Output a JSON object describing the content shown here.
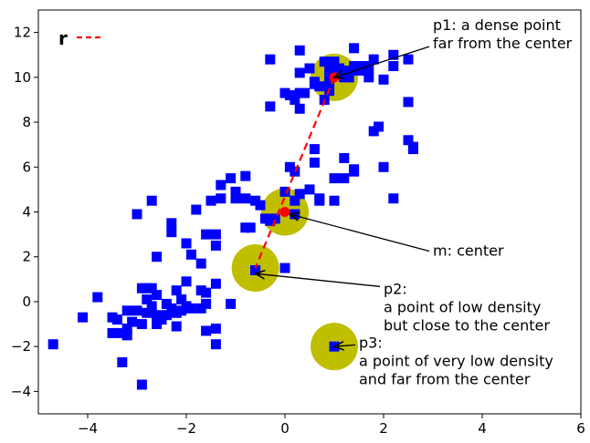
{
  "chart_data": {
    "type": "scatter",
    "xlim": [
      -5,
      6
    ],
    "ylim": [
      -5,
      13
    ],
    "xticks": [
      -4,
      -2,
      0,
      2,
      4,
      6
    ],
    "yticks": [
      -4,
      -2,
      0,
      2,
      4,
      6,
      8,
      10,
      12
    ],
    "xtick_labels": [
      "−4",
      "−2",
      "0",
      "2",
      "4",
      "6"
    ],
    "ytick_labels": [
      "−4",
      "−2",
      "0",
      "2",
      "4",
      "6",
      "8",
      "10",
      "12"
    ],
    "grid": false,
    "legend": {
      "position": "top-left",
      "entries": [
        {
          "label": "r",
          "style": "dashed-line",
          "color": "#ff0000"
        }
      ]
    },
    "points_color": "#0000ff",
    "points": [
      [
        -4.7,
        -1.9
      ],
      [
        -3.3,
        -2.7
      ],
      [
        -2.9,
        -3.7
      ],
      [
        -4.1,
        -0.7
      ],
      [
        -3.8,
        0.2
      ],
      [
        -3.5,
        -0.7
      ],
      [
        -3.4,
        -0.8
      ],
      [
        -3.5,
        -1.4
      ],
      [
        -3.3,
        -1.4
      ],
      [
        -3.2,
        -1.5
      ],
      [
        -3.2,
        -1.2
      ],
      [
        -3.1,
        -0.9
      ],
      [
        -3.2,
        -0.4
      ],
      [
        -3.0,
        -0.4
      ],
      [
        -2.9,
        0.6
      ],
      [
        -2.8,
        0.6
      ],
      [
        -2.7,
        0.6
      ],
      [
        -2.8,
        0.1
      ],
      [
        -2.7,
        -0.2
      ],
      [
        -2.8,
        -0.5
      ],
      [
        -2.9,
        -1.0
      ],
      [
        -2.6,
        -1.0
      ],
      [
        -2.6,
        -0.6
      ],
      [
        -2.5,
        -0.8
      ],
      [
        -2.6,
        0.3
      ],
      [
        -2.4,
        -0.1
      ],
      [
        -2.3,
        -0.3
      ],
      [
        -2.4,
        -0.6
      ],
      [
        -2.2,
        -0.5
      ],
      [
        -2.2,
        -1.1
      ],
      [
        -2.1,
        -0.4
      ],
      [
        -2.0,
        -0.2
      ],
      [
        -2.1,
        0.1
      ],
      [
        -2.2,
        0.5
      ],
      [
        -2.0,
        0.9
      ],
      [
        -1.9,
        -0.3
      ],
      [
        -1.7,
        -0.3
      ],
      [
        -1.6,
        -0.1
      ],
      [
        -1.6,
        -1.3
      ],
      [
        -1.4,
        -1.2
      ],
      [
        -1.4,
        -1.9
      ],
      [
        -1.7,
        0.5
      ],
      [
        -1.6,
        0.4
      ],
      [
        -1.4,
        0.8
      ],
      [
        -1.1,
        -0.1
      ],
      [
        -2.6,
        2.0
      ],
      [
        -2.0,
        2.6
      ],
      [
        -1.9,
        2.1
      ],
      [
        -1.7,
        1.7
      ],
      [
        -1.6,
        3.0
      ],
      [
        -1.4,
        3.0
      ],
      [
        -1.4,
        2.5
      ],
      [
        -2.3,
        3.5
      ],
      [
        -2.3,
        3.1
      ],
      [
        -3.0,
        3.9
      ],
      [
        -2.7,
        4.5
      ],
      [
        -1.8,
        4.1
      ],
      [
        -1.5,
        4.5
      ],
      [
        -1.3,
        4.6
      ],
      [
        -1.3,
        5.2
      ],
      [
        -1.1,
        5.5
      ],
      [
        -0.8,
        5.6
      ],
      [
        -1.0,
        4.9
      ],
      [
        -1.0,
        4.6
      ],
      [
        -0.8,
        4.6
      ],
      [
        -0.8,
        3.3
      ],
      [
        -0.7,
        3.3
      ],
      [
        -0.6,
        4.5
      ],
      [
        -0.5,
        4.3
      ],
      [
        -0.4,
        3.7
      ],
      [
        -0.3,
        3.6
      ],
      [
        -0.2,
        3.7
      ],
      [
        0.0,
        4.9
      ],
      [
        0.2,
        3.9
      ],
      [
        0.2,
        4.5
      ],
      [
        0.3,
        4.8
      ],
      [
        0.5,
        5.0
      ],
      [
        0.7,
        4.6
      ],
      [
        0.7,
        4.5
      ],
      [
        1.0,
        4.5
      ],
      [
        0.2,
        5.8
      ],
      [
        0.1,
        6.0
      ],
      [
        0.6,
        6.2
      ],
      [
        0.6,
        6.8
      ],
      [
        1.2,
        6.4
      ],
      [
        1.4,
        5.8
      ],
      [
        1.4,
        5.9
      ],
      [
        1.2,
        5.5
      ],
      [
        1.0,
        5.5
      ],
      [
        2.0,
        6.0
      ],
      [
        2.2,
        4.6
      ],
      [
        0.0,
        1.5
      ],
      [
        -0.6,
        1.4
      ],
      [
        -0.3,
        10.8
      ],
      [
        -0.3,
        8.7
      ],
      [
        0.3,
        8.6
      ],
      [
        0.0,
        9.3
      ],
      [
        0.1,
        9.2
      ],
      [
        0.2,
        9.0
      ],
      [
        0.3,
        9.3
      ],
      [
        0.4,
        9.3
      ],
      [
        0.6,
        9.7
      ],
      [
        0.6,
        9.8
      ],
      [
        0.7,
        9.6
      ],
      [
        0.8,
        9.0
      ],
      [
        0.9,
        9.4
      ],
      [
        0.9,
        9.8
      ],
      [
        0.9,
        10.2
      ],
      [
        0.8,
        10.7
      ],
      [
        0.9,
        10.6
      ],
      [
        1.0,
        10.7
      ],
      [
        1.1,
        10.4
      ],
      [
        1.2,
        10.0
      ],
      [
        1.3,
        10.0
      ],
      [
        1.3,
        10.3
      ],
      [
        1.4,
        10.5
      ],
      [
        1.5,
        10.3
      ],
      [
        1.6,
        10.5
      ],
      [
        1.7,
        10.4
      ],
      [
        1.7,
        10.0
      ],
      [
        1.8,
        10.8
      ],
      [
        2.0,
        9.9
      ],
      [
        2.2,
        10.5
      ],
      [
        2.2,
        11.0
      ],
      [
        2.5,
        10.8
      ],
      [
        1.4,
        11.3
      ],
      [
        0.3,
        11.2
      ],
      [
        0.3,
        10.2
      ],
      [
        0.5,
        10.4
      ],
      [
        2.5,
        8.9
      ],
      [
        1.8,
        7.6
      ],
      [
        1.9,
        7.8
      ],
      [
        2.5,
        7.2
      ],
      [
        2.6,
        6.9
      ],
      [
        2.6,
        6.8
      ]
    ],
    "red_line": {
      "from": [
        1.0,
        10.0
      ],
      "to": [
        -0.6,
        1.5
      ],
      "color": "#ff0000",
      "style": "dashed"
    },
    "red_points": [
      [
        1.0,
        10.0
      ],
      [
        0.0,
        4.0
      ]
    ],
    "circles_color": "#bfbf00",
    "circles": [
      [
        1.0,
        10.0
      ],
      [
        0.0,
        4.0
      ],
      [
        -0.6,
        1.5
      ],
      [
        1.0,
        -2.0
      ]
    ],
    "special_points": [
      [
        -0.6,
        1.4
      ],
      [
        1.0,
        -2.0
      ]
    ],
    "annotations": [
      {
        "id": "p1",
        "lines": [
          "p1: a dense point",
          "far from the center"
        ],
        "text_at": [
          3.0,
          12.1
        ],
        "arrow_to": [
          1.0,
          10.0
        ]
      },
      {
        "id": "m",
        "lines": [
          "m: center"
        ],
        "text_at": [
          3.0,
          2.05
        ],
        "arrow_to": [
          0.1,
          3.9
        ]
      },
      {
        "id": "p2",
        "lines": [
          "p2:",
          "a point of low density",
          "but close to the center"
        ],
        "text_at": [
          2.0,
          0.35
        ],
        "arrow_to": [
          -0.6,
          1.25
        ]
      },
      {
        "id": "p3",
        "lines": [
          "p3:",
          "a point of very low density",
          "and far from the center"
        ],
        "text_at": [
          1.5,
          -2.05
        ],
        "arrow_to": [
          1.0,
          -2.0
        ]
      }
    ]
  }
}
